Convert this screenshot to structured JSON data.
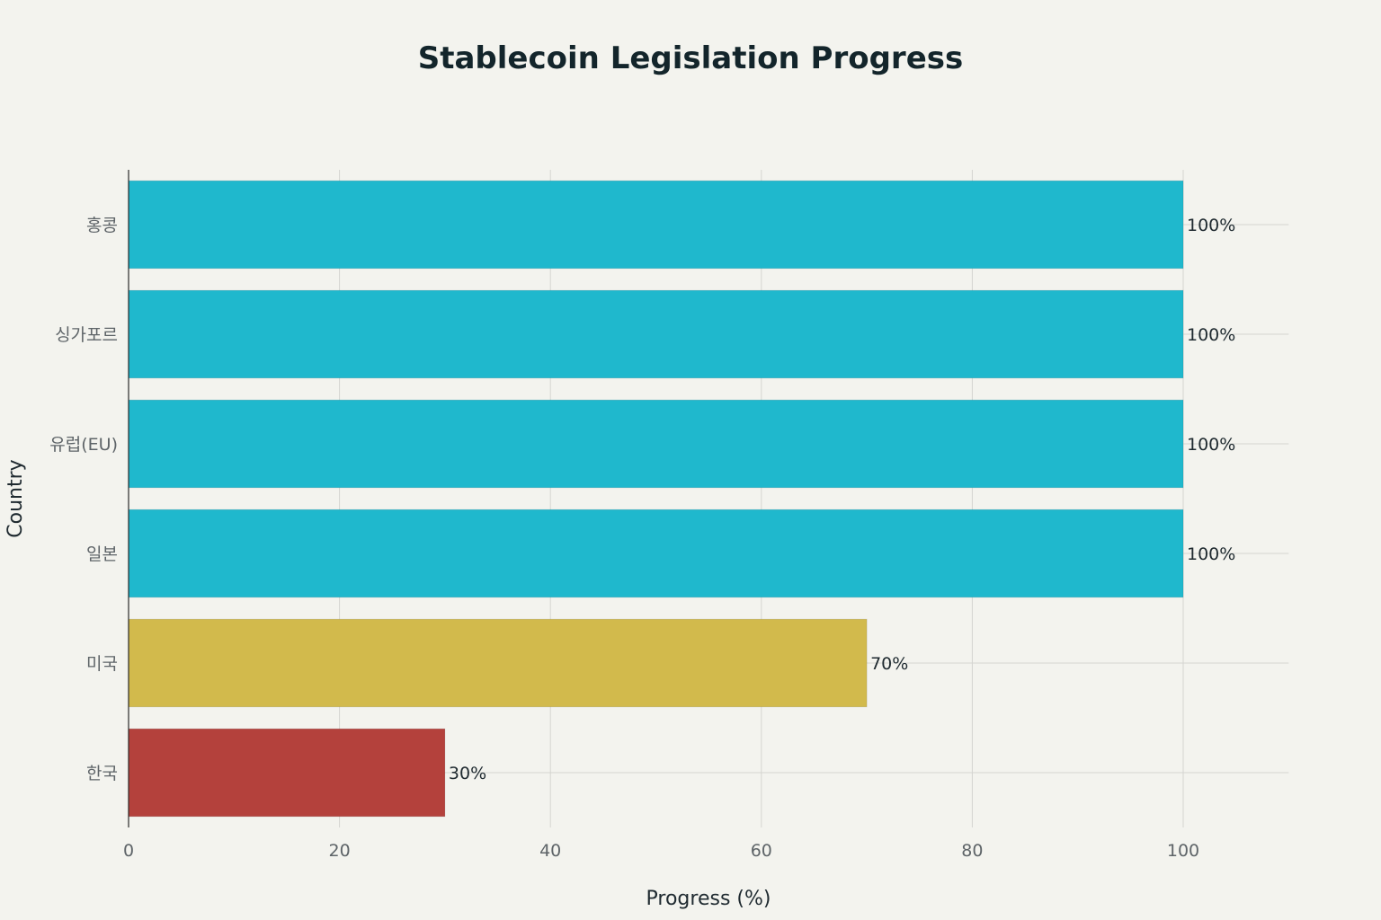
{
  "chart_data": {
    "type": "bar",
    "orientation": "horizontal",
    "title": "Stablecoin Legislation Progress",
    "xlabel": "Progress (%)",
    "ylabel": "Country",
    "categories": [
      "홍콩",
      "싱가포르",
      "유럽(EU)",
      "일본",
      "미국",
      "한국"
    ],
    "values": [
      100,
      100,
      100,
      100,
      70,
      30
    ],
    "data_labels": [
      "100%",
      "100%",
      "100%",
      "100%",
      "70%",
      "30%"
    ],
    "bar_colors": [
      "#1fb8cd",
      "#1fb8cd",
      "#1fb8cd",
      "#1fb8cd",
      "#d2ba4c",
      "#b4413c"
    ],
    "xlim": [
      0,
      110
    ],
    "xticks": [
      0,
      20,
      40,
      60,
      80,
      100
    ],
    "xtick_labels": [
      "0",
      "20",
      "40",
      "60",
      "80",
      "100"
    ],
    "grid": true,
    "legend": false
  }
}
